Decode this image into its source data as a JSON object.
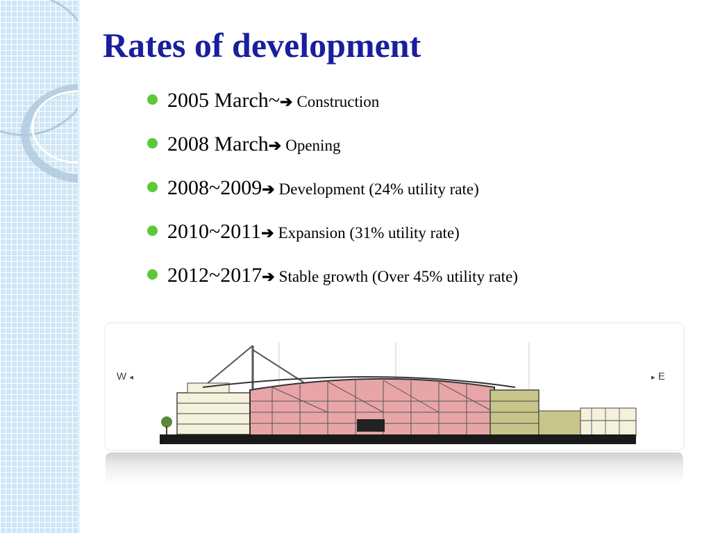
{
  "slide": {
    "title": "Rates of development",
    "bullets": [
      {
        "year": "2005 March~",
        "arrow": "➔",
        "desc": "Construction"
      },
      {
        "year": "2008 March",
        "arrow": "➔",
        "desc": "Opening"
      },
      {
        "year": "2008~2009",
        "arrow": "➔",
        "desc": "Development (24% utility rate)"
      },
      {
        "year": "2010~2011",
        "arrow": "➔",
        "desc": "Expansion (31% utility rate)"
      },
      {
        "year": "2012~2017",
        "arrow": "➔",
        "desc": "Stable growth (Over 45% utility rate)"
      }
    ]
  },
  "figure": {
    "west_label": "W",
    "east_label": "E",
    "west_arrow": "◂",
    "east_arrow": "▸"
  },
  "colors": {
    "title": "#1a1f9e",
    "bullet": "#5cc83a",
    "building_main": "#e8a5a8",
    "building_side": "#c7c58a"
  }
}
